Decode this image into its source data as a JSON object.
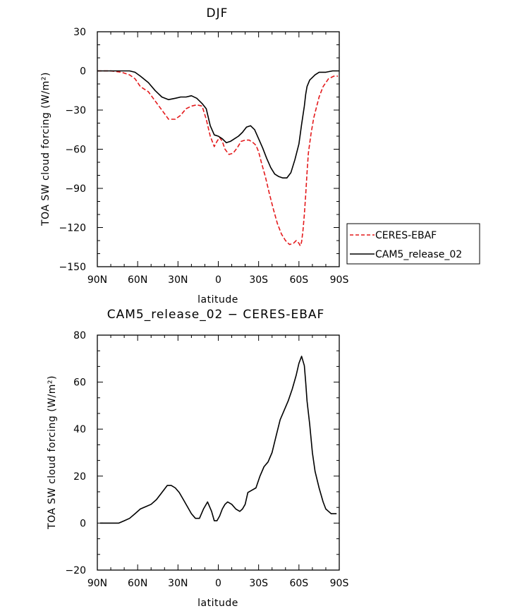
{
  "chart_data": [
    {
      "type": "line",
      "title": "DJF",
      "xlabel": "latitude",
      "ylabel": "TOA SW cloud forcing (W/m²)",
      "xlim": [
        90,
        -90
      ],
      "ylim": [
        -150,
        30
      ],
      "xticks": [
        {
          "value": 90,
          "label": "90N"
        },
        {
          "value": 60,
          "label": "60N"
        },
        {
          "value": 30,
          "label": "30N"
        },
        {
          "value": 0,
          "label": "0"
        },
        {
          "value": -30,
          "label": "30S"
        },
        {
          "value": -60,
          "label": "60S"
        },
        {
          "value": -90,
          "label": "90S"
        }
      ],
      "yticks": [
        {
          "value": 30,
          "label": "30"
        },
        {
          "value": 0,
          "label": "0"
        },
        {
          "value": -30,
          "label": "−30"
        },
        {
          "value": -60,
          "label": "−60"
        },
        {
          "value": -90,
          "label": "−90"
        },
        {
          "value": -120,
          "label": "−120"
        },
        {
          "value": -150,
          "label": "−150"
        }
      ],
      "legend_position": "right",
      "series": [
        {
          "name": "CERES-EBAF",
          "color": "#e41a1c",
          "dash": "dashed",
          "x": [
            90,
            80,
            72,
            66,
            62,
            58,
            52,
            47,
            42,
            37,
            32,
            28,
            24,
            20,
            16,
            12,
            9,
            6,
            3,
            1,
            -1,
            -3,
            -5,
            -8,
            -11,
            -14,
            -17,
            -20,
            -23,
            -26,
            -28,
            -30,
            -32,
            -35,
            -38,
            -41,
            -44,
            -47,
            -50,
            -53,
            -56,
            -58,
            -60,
            -61,
            -62,
            -63,
            -64,
            -65,
            -66,
            -67,
            -69,
            -71,
            -73,
            -75,
            -78,
            -82,
            -86,
            -89
          ],
          "y": [
            0,
            0,
            -1,
            -3,
            -6,
            -12,
            -16,
            -23,
            -30,
            -37,
            -37,
            -34,
            -29,
            -27,
            -26,
            -27,
            -37,
            -50,
            -58,
            -54,
            -51,
            -54,
            -60,
            -64,
            -63,
            -59,
            -54,
            -53,
            -53,
            -55,
            -57,
            -62,
            -70,
            -81,
            -94,
            -106,
            -117,
            -125,
            -130,
            -133,
            -132,
            -130,
            -132,
            -134,
            -131,
            -122,
            -110,
            -95,
            -78,
            -63,
            -48,
            -36,
            -28,
            -20,
            -12,
            -6,
            -4,
            -4
          ]
        },
        {
          "name": "CAM5_release_02",
          "color": "#000000",
          "dash": "solid",
          "x": [
            90,
            80,
            72,
            66,
            62,
            58,
            52,
            47,
            42,
            37,
            32,
            28,
            24,
            20,
            16,
            12,
            9,
            6,
            3,
            0,
            -3,
            -6,
            -9,
            -12,
            -15,
            -18,
            -21,
            -24,
            -27,
            -30,
            -33,
            -36,
            -39,
            -42,
            -45,
            -48,
            -51,
            -54,
            -57,
            -60,
            -62,
            -64,
            -65,
            -66,
            -68,
            -70,
            -72,
            -75,
            -80,
            -85,
            -90
          ],
          "y": [
            0,
            0,
            0,
            0,
            -1,
            -4,
            -9,
            -15,
            -20,
            -22,
            -21,
            -20,
            -20,
            -19,
            -21,
            -25,
            -29,
            -42,
            -49,
            -50,
            -52,
            -55,
            -54,
            -52,
            -50,
            -47,
            -43,
            -42,
            -45,
            -52,
            -59,
            -67,
            -74,
            -79,
            -81,
            -82,
            -82,
            -78,
            -68,
            -56,
            -41,
            -27,
            -18,
            -12,
            -7,
            -5,
            -3,
            -1,
            -1,
            0,
            0
          ]
        }
      ]
    },
    {
      "type": "line",
      "title": "CAM5_release_02 − CERES-EBAF",
      "xlabel": "latitude",
      "ylabel": "TOA SW cloud forcing (W/m²)",
      "xlim": [
        90,
        -90
      ],
      "ylim": [
        -20,
        80
      ],
      "xticks": [
        {
          "value": 90,
          "label": "90N"
        },
        {
          "value": 60,
          "label": "60N"
        },
        {
          "value": 30,
          "label": "30N"
        },
        {
          "value": 0,
          "label": "0"
        },
        {
          "value": -30,
          "label": "30S"
        },
        {
          "value": -60,
          "label": "60S"
        },
        {
          "value": -90,
          "label": "90S"
        }
      ],
      "yticks": [
        {
          "value": 80,
          "label": "80"
        },
        {
          "value": 60,
          "label": "60"
        },
        {
          "value": 40,
          "label": "40"
        },
        {
          "value": 20,
          "label": "20"
        },
        {
          "value": 0,
          "label": "0"
        },
        {
          "value": -20,
          "label": "−20"
        }
      ],
      "series": [
        {
          "name": "CAM5_release_02 − CERES-EBAF",
          "color": "#000000",
          "dash": "solid",
          "x": [
            88,
            82,
            78,
            74,
            70,
            66,
            62,
            58,
            54,
            50,
            46,
            42,
            38,
            35,
            32,
            29,
            26,
            23,
            20,
            17,
            14,
            11,
            8,
            5,
            3,
            1,
            -1,
            -3,
            -5,
            -7,
            -10,
            -13,
            -16,
            -18,
            -20,
            -22,
            -25,
            -28,
            -31,
            -34,
            -37,
            -40,
            -43,
            -46,
            -49,
            -52,
            -55,
            -58,
            -60,
            -62,
            -64,
            -65,
            -66,
            -68,
            -70,
            -72,
            -75,
            -78,
            -80,
            -82,
            -84,
            -86,
            -88
          ],
          "y": [
            0,
            0,
            0,
            0,
            1,
            2,
            4,
            6,
            7,
            8,
            10,
            13,
            16,
            16,
            15,
            13,
            10,
            7,
            4,
            2,
            2,
            6,
            9,
            5,
            1,
            1,
            3,
            6,
            8,
            9,
            8,
            6,
            5,
            6,
            8,
            13,
            14,
            15,
            20,
            24,
            26,
            30,
            37,
            44,
            48,
            52,
            57,
            63,
            68,
            71,
            67,
            60,
            52,
            42,
            30,
            22,
            15,
            9,
            6,
            5,
            4,
            4,
            4
          ]
        }
      ]
    }
  ]
}
